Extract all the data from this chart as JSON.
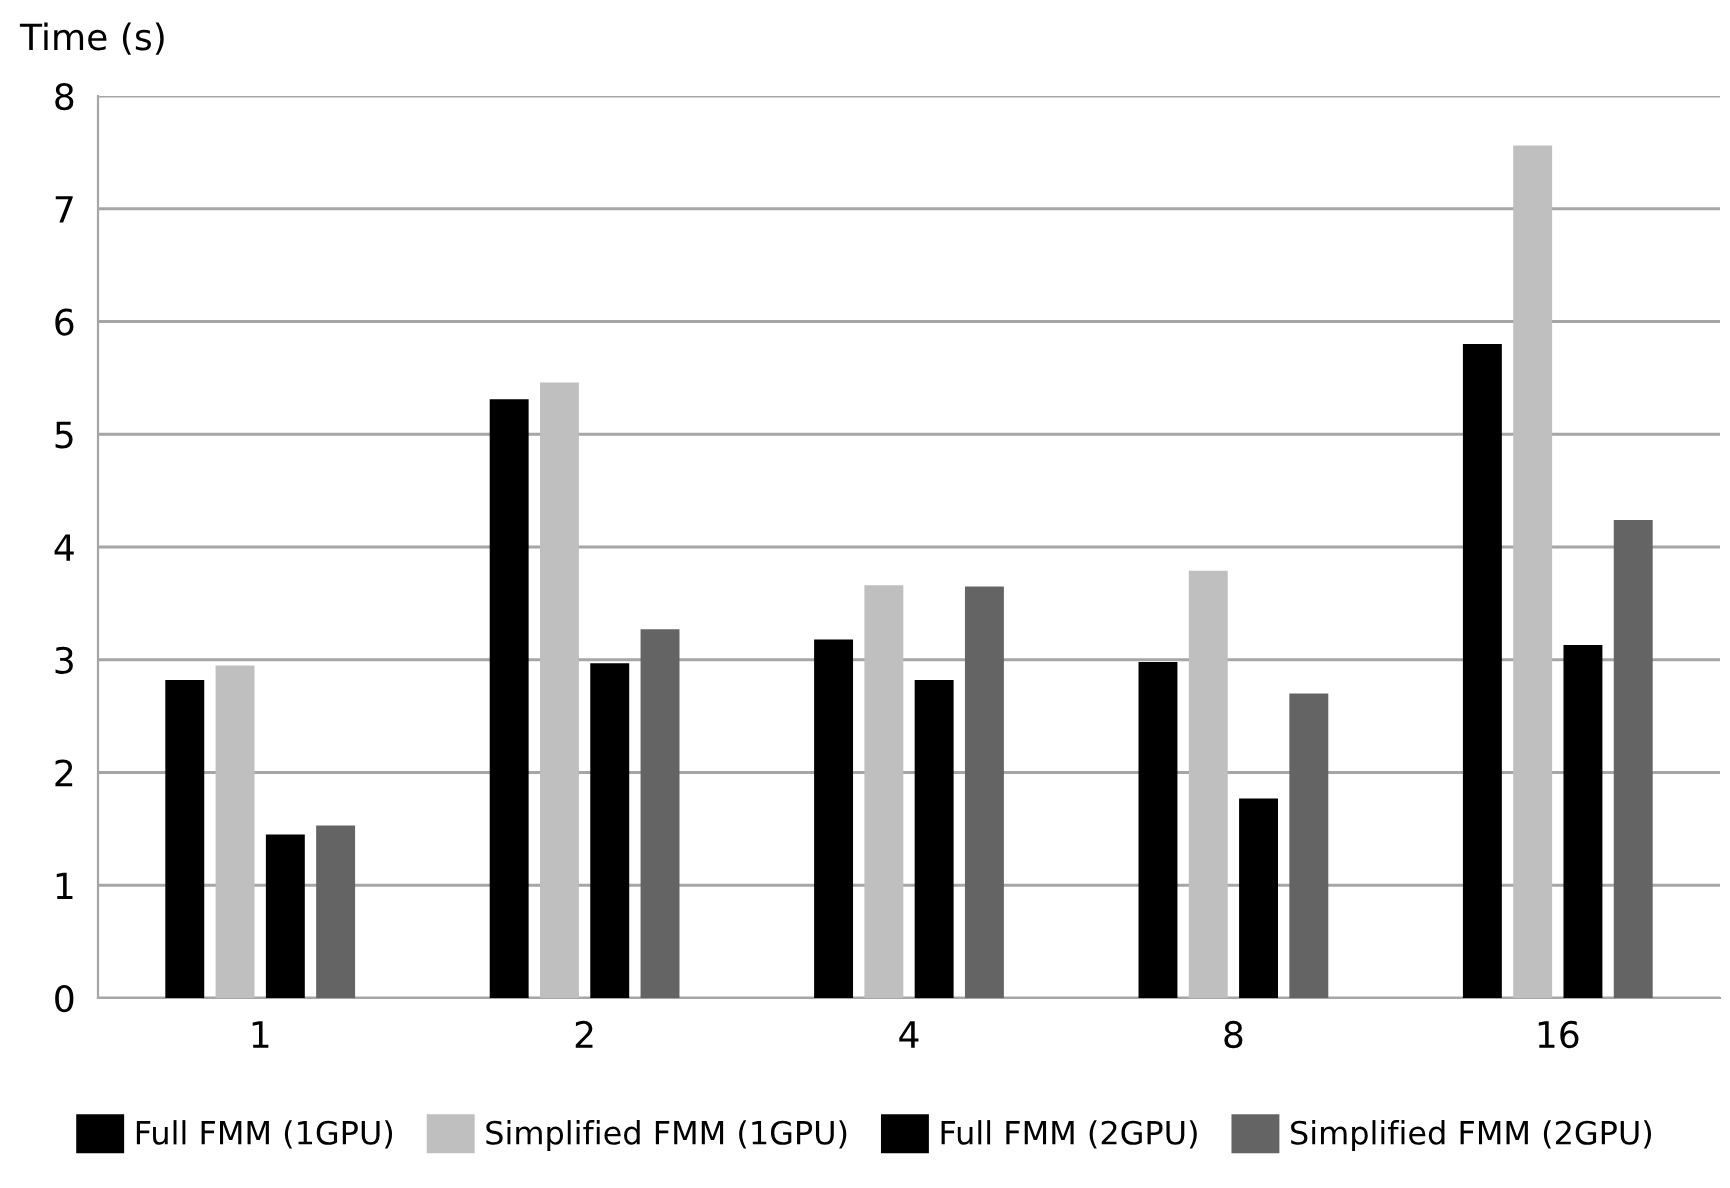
{
  "chart_data": {
    "type": "bar",
    "ylabel": "Time (s)",
    "categories": [
      "1",
      "2",
      "4",
      "8",
      "16"
    ],
    "series": [
      {
        "name": "Full FMM (1GPU)",
        "color": "#000000",
        "values": [
          2.82,
          5.31,
          3.18,
          2.98,
          5.8
        ]
      },
      {
        "name": "Simplified FMM (1GPU)",
        "color": "#bfbfbf",
        "values": [
          2.95,
          5.46,
          3.66,
          3.79,
          7.56
        ]
      },
      {
        "name": "Full FMM (2GPU)",
        "color": "#000000",
        "values": [
          1.45,
          2.97,
          2.82,
          1.77,
          3.13
        ]
      },
      {
        "name": "Simplified FMM (2GPU)",
        "color": "#646464",
        "values": [
          1.53,
          3.27,
          3.65,
          2.7,
          4.24
        ]
      }
    ],
    "ylim": [
      0,
      8
    ],
    "yticks": [
      0,
      1,
      2,
      3,
      4,
      5,
      6,
      7,
      8
    ],
    "grid": "y",
    "legend": "bottom"
  }
}
